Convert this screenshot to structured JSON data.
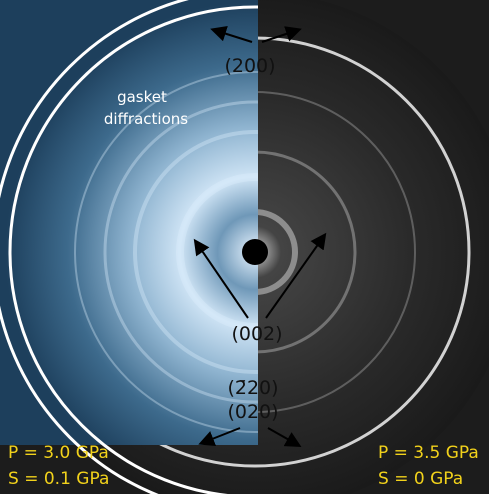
{
  "labels": {
    "top": "(200)",
    "gasket": [
      "gasket",
      "diffractions"
    ],
    "middle": "(002)",
    "lower": [
      "(2̄20)",
      "(020)"
    ]
  },
  "left_conditions": [
    "P = 3.0 GPa",
    "S = 0.1 GPa"
  ],
  "right_conditions": [
    "P = 3.5 GPa",
    "S = 0 GPa"
  ]
}
